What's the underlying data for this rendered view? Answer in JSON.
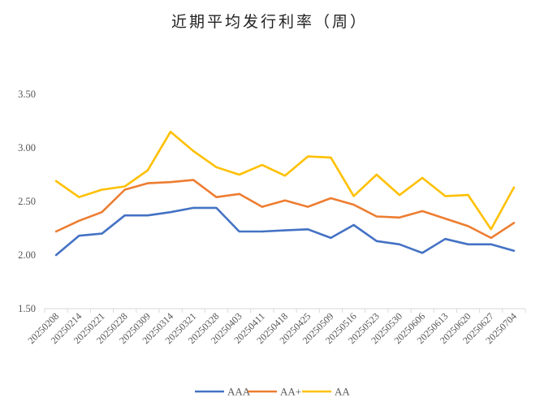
{
  "chart_data": {
    "type": "line",
    "title": "近期平均发行利率（周）",
    "xlabel": "",
    "ylabel": "",
    "ylim": [
      1.5,
      3.5
    ],
    "yticks": [
      "1.50",
      "2.00",
      "2.50",
      "3.00",
      "3.50"
    ],
    "grid": false,
    "legend_position": "bottom",
    "categories": [
      "20250208",
      "20250214",
      "20250221",
      "20250228",
      "20250309",
      "20250314",
      "20250321",
      "20250328",
      "20250403",
      "20250411",
      "20250418",
      "20250425",
      "20250509",
      "20250516",
      "20250523",
      "20250530",
      "20250606",
      "20250613",
      "20250620",
      "20250627",
      "20250704"
    ],
    "series": [
      {
        "name": "AAA",
        "color": "#4472C4",
        "values": [
          2.0,
          2.18,
          2.2,
          2.37,
          2.37,
          2.4,
          2.44,
          2.44,
          2.22,
          2.22,
          2.23,
          2.24,
          2.16,
          2.28,
          2.13,
          2.1,
          2.02,
          2.15,
          2.1,
          2.1,
          2.04
        ]
      },
      {
        "name": "AA+",
        "color": "#ED7D31",
        "values": [
          2.22,
          2.32,
          2.4,
          2.61,
          2.67,
          2.68,
          2.7,
          2.54,
          2.57,
          2.45,
          2.51,
          2.45,
          2.53,
          2.47,
          2.36,
          2.35,
          2.41,
          2.34,
          2.27,
          2.16,
          2.3
        ]
      },
      {
        "name": "AA",
        "color": "#FFC000",
        "values": [
          2.69,
          2.54,
          2.61,
          2.64,
          2.79,
          3.15,
          2.97,
          2.82,
          2.75,
          2.84,
          2.74,
          2.92,
          2.91,
          2.55,
          2.75,
          2.56,
          2.72,
          2.55,
          2.56,
          2.24,
          2.63
        ]
      }
    ]
  }
}
